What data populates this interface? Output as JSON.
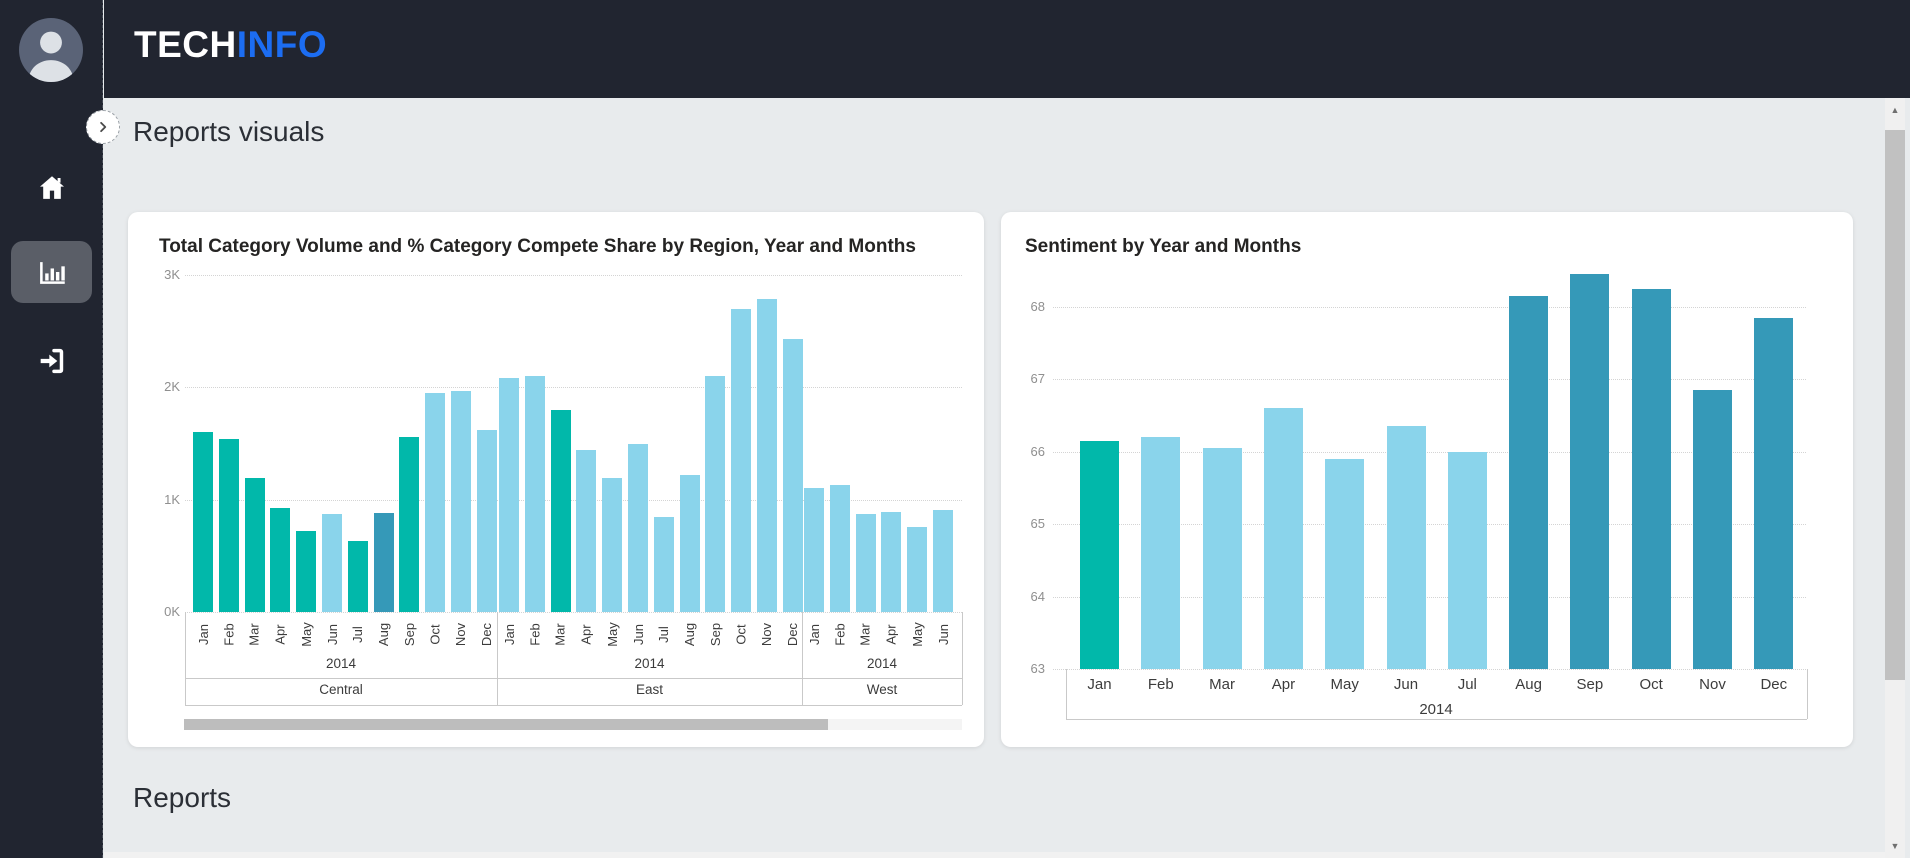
{
  "header": {
    "brand": {
      "primary": "TECH",
      "accent": "INFO",
      "accent_color": "#1C6DF2"
    }
  },
  "sidebar": {
    "items": [
      {
        "id": "home",
        "icon": "home-icon",
        "active": false
      },
      {
        "id": "reports",
        "icon": "bar-chart-icon",
        "active": true
      },
      {
        "id": "sign-in",
        "icon": "sign-in-icon",
        "active": false
      }
    ]
  },
  "main": {
    "section_title": "Reports visuals",
    "reports_title": "Reports"
  },
  "colors": {
    "teal": "#01B8AA",
    "light_blue": "#8AD4EB",
    "steel_blue": "#3599B8",
    "header_bg": "#212530",
    "content_bg": "#E8EBED"
  },
  "chart_data": [
    {
      "type": "bar",
      "title": "Total Category Volume and % Category Compete Share by Region, Year and Months",
      "ylim": [
        0,
        3000
      ],
      "yticks": [
        {
          "label": "0K",
          "value": 0
        },
        {
          "label": "1K",
          "value": 1000
        },
        {
          "label": "2K",
          "value": 2000
        },
        {
          "label": "3K",
          "value": 3000
        }
      ],
      "grid": "dotted",
      "x_hierarchy": [
        "Months",
        "Year",
        "Region"
      ],
      "groups": [
        {
          "region": "Central",
          "year": "2014",
          "months": [
            "Jan",
            "Feb",
            "Mar",
            "Apr",
            "May",
            "Jun",
            "Jul",
            "Aug",
            "Sep",
            "Oct",
            "Nov",
            "Dec"
          ],
          "values": [
            1600,
            1540,
            1190,
            930,
            720,
            870,
            630,
            880,
            1560,
            1950,
            1970,
            1620
          ],
          "colors": [
            "teal",
            "teal",
            "teal",
            "teal",
            "teal",
            "light_blue",
            "teal",
            "steel_blue",
            "teal",
            "light_blue",
            "light_blue",
            "light_blue"
          ]
        },
        {
          "region": "East",
          "year": "2014",
          "months": [
            "Jan",
            "Feb",
            "Mar",
            "Apr",
            "May",
            "Jun",
            "Jul",
            "Aug",
            "Sep",
            "Oct",
            "Nov",
            "Dec"
          ],
          "values": [
            2080,
            2100,
            1800,
            1440,
            1190,
            1500,
            850,
            1220,
            2100,
            2700,
            2790,
            2430
          ],
          "colors": [
            "light_blue",
            "light_blue",
            "teal",
            "light_blue",
            "light_blue",
            "light_blue",
            "light_blue",
            "light_blue",
            "light_blue",
            "light_blue",
            "light_blue",
            "light_blue"
          ]
        },
        {
          "region": "West",
          "year": "2014",
          "months": [
            "Jan",
            "Feb",
            "Mar",
            "Apr",
            "May",
            "Jun"
          ],
          "values": [
            1100,
            1130,
            870,
            890,
            760,
            910
          ],
          "colors": [
            "light_blue",
            "light_blue",
            "light_blue",
            "light_blue",
            "light_blue",
            "light_blue"
          ]
        }
      ],
      "has_horizontal_scrollbar": true
    },
    {
      "type": "bar",
      "title": "Sentiment by Year and Months",
      "year": "2014",
      "categories": [
        "Jan",
        "Feb",
        "Mar",
        "Apr",
        "May",
        "Jun",
        "Jul",
        "Aug",
        "Sep",
        "Oct",
        "Nov",
        "Dec"
      ],
      "values": [
        66.15,
        66.2,
        66.05,
        66.6,
        65.9,
        66.35,
        66.0,
        68.15,
        68.45,
        68.25,
        66.85,
        67.85
      ],
      "colors": [
        "teal",
        "light_blue",
        "light_blue",
        "light_blue",
        "light_blue",
        "light_blue",
        "light_blue",
        "steel_blue",
        "steel_blue",
        "steel_blue",
        "steel_blue",
        "steel_blue"
      ],
      "ylim": [
        63,
        68.6
      ],
      "yticks": [
        63,
        64,
        65,
        66,
        67,
        68
      ],
      "grid": "dotted",
      "legend_position": "none"
    }
  ]
}
